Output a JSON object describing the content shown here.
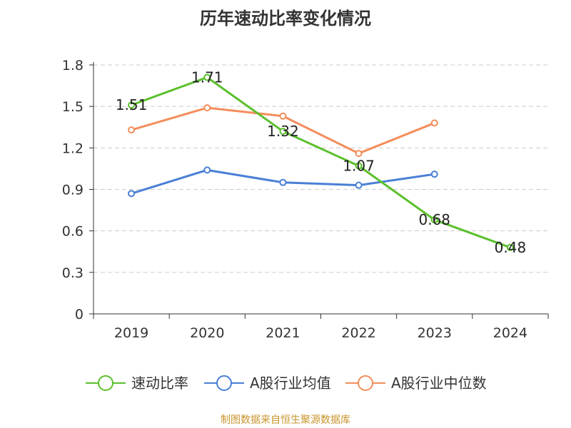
{
  "title": "历年速动比率变化情况",
  "source": "制图数据来自恒生聚源数据库",
  "chart_data": {
    "type": "line",
    "title": "历年速动比率变化情况",
    "categories": [
      "2019",
      "2020",
      "2021",
      "2022",
      "2023",
      "2024"
    ],
    "ylim": [
      0,
      1.8
    ],
    "yticks": [
      "0",
      "0.3",
      "0.6",
      "0.9",
      "1.2",
      "1.5",
      "1.8"
    ],
    "grid": true,
    "legend_position": "bottom",
    "series": [
      {
        "name": "速动比率",
        "color": "#5bc02d",
        "values": [
          1.51,
          1.71,
          1.32,
          1.07,
          0.68,
          0.48
        ],
        "show_labels": true,
        "label_text": [
          "1.51",
          "1.71",
          "1.32",
          "1.07",
          "0.68",
          "0.48"
        ]
      },
      {
        "name": "A股行业均值",
        "color": "#4a7fd6",
        "values": [
          0.87,
          1.04,
          0.95,
          0.93,
          1.01,
          null
        ],
        "show_labels": false
      },
      {
        "name": "A股行业中位数",
        "color": "#f48d5b",
        "values": [
          1.33,
          1.49,
          1.43,
          1.16,
          1.38,
          null
        ],
        "show_labels": false
      }
    ]
  }
}
